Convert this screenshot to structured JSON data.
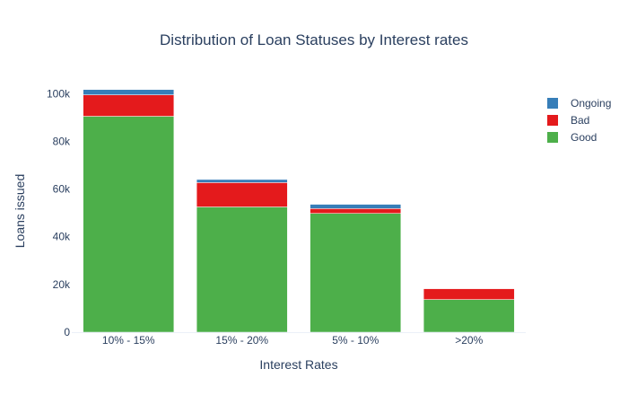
{
  "chart_data": {
    "type": "bar",
    "stacked": true,
    "title": "Distribution of Loan Statuses by Interest rates",
    "xlabel": "Interest Rates",
    "ylabel": "Loans issued",
    "categories": [
      "10% - 15%",
      "15% - 20%",
      "5% - 10%",
      ">20%"
    ],
    "ylim": [
      0,
      105000
    ],
    "yticks": [
      0,
      20000,
      40000,
      60000,
      80000,
      100000
    ],
    "ytick_labels": [
      "0",
      "20k",
      "40k",
      "60k",
      "80k",
      "100k"
    ],
    "grid": false,
    "legend_position": "right",
    "series": [
      {
        "name": "Good",
        "color": "#4daf4a",
        "values": [
          90500,
          52500,
          49800,
          13700
        ]
      },
      {
        "name": "Bad",
        "color": "#e41a1c",
        "values": [
          9000,
          10200,
          2000,
          4500
        ]
      },
      {
        "name": "Ongoing",
        "color": "#377eb8",
        "values": [
          2200,
          1300,
          1800,
          0
        ]
      }
    ],
    "legend_order": [
      "Ongoing",
      "Bad",
      "Good"
    ]
  }
}
